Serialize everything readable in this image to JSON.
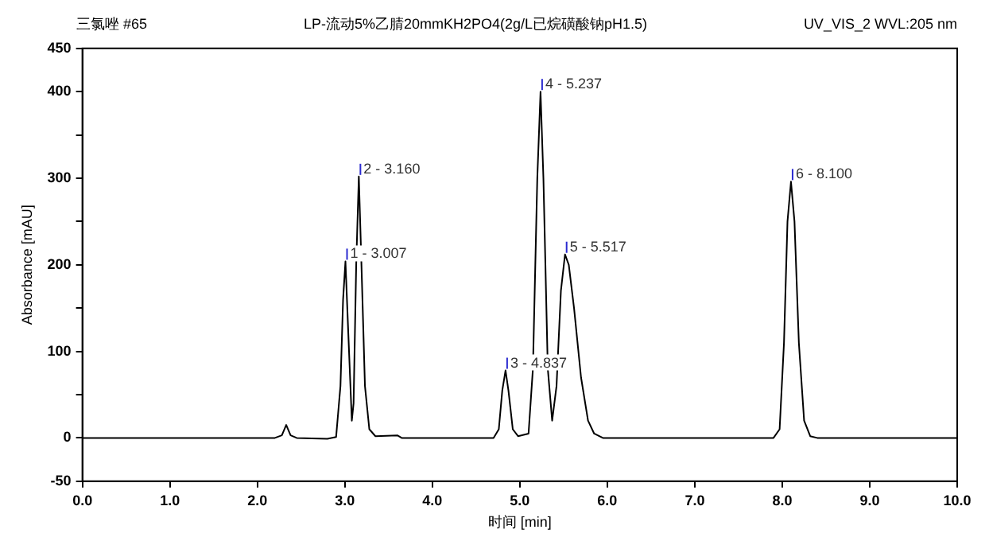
{
  "chart_data": {
    "type": "line",
    "title": "LP-流动5%乙腈20mmKH2PO4(2g/L已烷磺酸钠pH1.5)",
    "subtitle": "UV_VIS_2 WVL:205 nm",
    "xlabel": "时间 [min]",
    "ylabel": "Absorbance [mAU]",
    "annotations": [
      "三氯唑 #65",
      {
        "text": "1 - 3.007",
        "x": 3.007,
        "y": 204
      },
      {
        "text": "2 - 3.160",
        "x": 3.16,
        "y": 302
      },
      {
        "text": "3 - 4.837",
        "x": 4.837,
        "y": 78
      },
      {
        "text": "4 - 5.237",
        "x": 5.237,
        "y": 400
      },
      {
        "text": "5 - 5.517",
        "x": 5.517,
        "y": 212
      },
      {
        "text": "6 - 8.100",
        "x": 8.1,
        "y": 296
      }
    ],
    "series": [
      {
        "color": "#000000",
        "x": [
          0,
          2.2,
          2.28,
          2.33,
          2.38,
          2.45,
          2.8,
          2.9,
          2.95,
          2.98,
          3.007,
          3.04,
          3.08,
          3.1,
          3.13,
          3.16,
          3.19,
          3.23,
          3.28,
          3.35,
          3.6,
          3.65,
          4.7,
          4.76,
          4.8,
          4.837,
          4.87,
          4.92,
          4.98,
          5.1,
          5.15,
          5.2,
          5.237,
          5.27,
          5.32,
          5.37,
          5.42,
          5.47,
          5.517,
          5.56,
          5.62,
          5.7,
          5.78,
          5.85,
          5.95,
          7.9,
          7.97,
          8.02,
          8.06,
          8.1,
          8.14,
          8.19,
          8.25,
          8.32,
          8.4,
          10
        ],
        "values": [
          0,
          0,
          3,
          15,
          3,
          0,
          -1,
          1,
          60,
          160,
          204,
          120,
          20,
          40,
          200,
          302,
          200,
          60,
          10,
          2,
          3,
          0,
          0,
          10,
          55,
          78,
          55,
          10,
          2,
          5,
          80,
          300,
          400,
          300,
          80,
          20,
          60,
          170,
          212,
          200,
          150,
          70,
          20,
          5,
          0,
          0,
          10,
          110,
          250,
          296,
          250,
          110,
          20,
          2,
          0,
          0
        ]
      }
    ],
    "xlim": [
      0,
      10
    ],
    "xticks": [
      {
        "value": 0,
        "label": "0.0"
      },
      {
        "value": 1,
        "label": "1.0"
      },
      {
        "value": 2,
        "label": "2.0"
      },
      {
        "value": 3,
        "label": "3.0"
      },
      {
        "value": 4,
        "label": "4.0"
      },
      {
        "value": 5,
        "label": "5.0"
      },
      {
        "value": 6,
        "label": "6.0"
      },
      {
        "value": 7,
        "label": "7.0"
      },
      {
        "value": 8,
        "label": "8.0"
      },
      {
        "value": 9,
        "label": "9.0"
      },
      {
        "value": 10,
        "label": "10.0"
      }
    ],
    "ylim": [
      -50,
      450
    ],
    "yticks": [
      -50,
      0,
      {
        "value": 50,
        "label": null
      },
      100,
      {
        "value": 150,
        "label": null
      },
      200,
      {
        "value": 250,
        "label": null
      },
      300,
      {
        "value": 350,
        "label": null
      },
      400,
      450
    ],
    "grid": false,
    "legend": false,
    "marker": "none",
    "line_style": "solid"
  }
}
